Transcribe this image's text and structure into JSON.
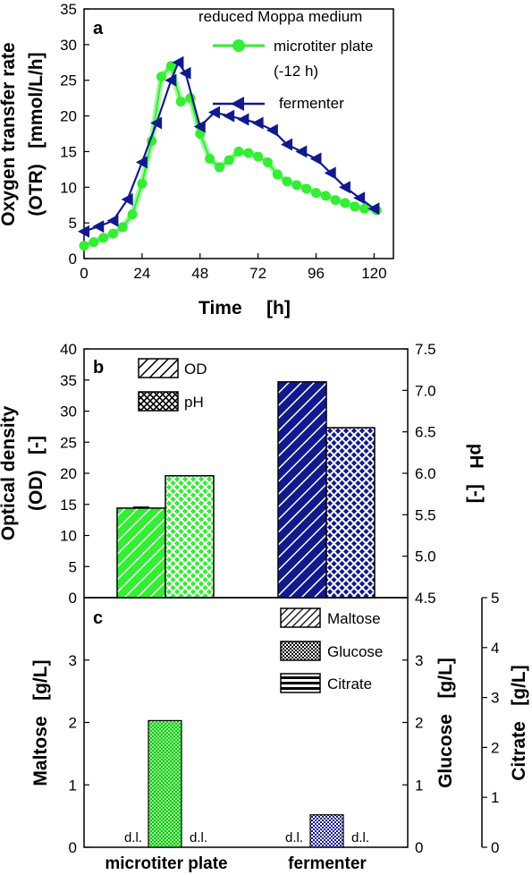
{
  "colors": {
    "green": "#33ee33",
    "green_light": "#88ff88",
    "navy": "#111a8c",
    "black": "#000000"
  },
  "chart_data": [
    {
      "panel": "a",
      "type": "line",
      "annotation": "reduced Moppa medium",
      "xlabel": [
        "Time",
        "[h]"
      ],
      "ylabel": [
        "Oxygen transfer rate",
        "(OTR)   [mmol/L/h]"
      ],
      "xlim": [
        0,
        128
      ],
      "ylim": [
        0,
        35
      ],
      "xticks": [
        0,
        24,
        48,
        72,
        96,
        120
      ],
      "yticks": [
        0,
        5,
        10,
        15,
        20,
        25,
        30,
        35
      ],
      "series": [
        {
          "name": "microtiter plate",
          "note": "(-12 h)",
          "color": "#33ee33",
          "marker": "circle",
          "x": [
            0,
            4,
            8,
            12,
            16,
            20,
            24,
            28,
            32,
            36,
            40,
            44,
            48,
            52,
            56,
            60,
            64,
            68,
            72,
            76,
            80,
            84,
            88,
            92,
            96,
            100,
            104,
            108,
            112,
            116,
            121
          ],
          "y": [
            1.8,
            2.3,
            2.9,
            3.5,
            4.4,
            6.2,
            10.5,
            16.5,
            25.5,
            27.0,
            22.0,
            22.5,
            17.5,
            14.0,
            12.8,
            13.8,
            15.0,
            14.8,
            14.3,
            13.5,
            11.8,
            10.8,
            10.3,
            9.8,
            9.2,
            8.8,
            8.2,
            7.8,
            7.3,
            7.0,
            6.8
          ]
        },
        {
          "name": "fermenter",
          "color": "#111a8c",
          "marker": "triangle-left",
          "x": [
            0,
            6,
            12,
            18,
            24,
            30,
            36,
            39,
            42,
            48,
            54,
            60,
            66,
            72,
            78,
            84,
            90,
            96,
            102,
            108,
            114,
            120
          ],
          "y": [
            3.8,
            4.5,
            5.3,
            8.3,
            13.5,
            19.0,
            25.0,
            27.5,
            26.0,
            18.5,
            20.5,
            20.0,
            19.5,
            19.0,
            18.0,
            16.0,
            15.0,
            14.0,
            12.0,
            10.0,
            8.5,
            7.0
          ]
        }
      ]
    },
    {
      "panel": "b",
      "type": "bar",
      "categories": [
        "microtiter plate",
        "fermenter"
      ],
      "ylabel": [
        "Optical density",
        "(OD)   [-]"
      ],
      "y2label": "pH   [-]",
      "ylim": [
        0,
        40
      ],
      "y2lim": [
        4.5,
        7.5
      ],
      "yticks": [
        0,
        5,
        10,
        15,
        20,
        25,
        30,
        35,
        40
      ],
      "y2ticks": [
        "4.5",
        "5.0",
        "5.5",
        "6.0",
        "6.5",
        "7.0",
        "7.5"
      ],
      "series": [
        {
          "name": "OD",
          "axis": "left",
          "pattern": "diagonal",
          "values": [
            14.4,
            34.7
          ]
        },
        {
          "name": "pH",
          "axis": "right",
          "pattern": "crosshatch",
          "values": [
            5.97,
            6.55
          ]
        }
      ]
    },
    {
      "panel": "c",
      "type": "bar",
      "categories": [
        "microtiter plate",
        "fermenter"
      ],
      "ylabel": "Maltose   [g/L]",
      "y2label": "Glucose   [g/L]",
      "y3label": "Citrate   [g/L]",
      "ylim": [
        0,
        4
      ],
      "y2lim": [
        0,
        4
      ],
      "y3lim": [
        0,
        5
      ],
      "yticks": [
        0,
        1,
        2,
        3
      ],
      "y2ticks": [
        0,
        1,
        2,
        3
      ],
      "y3ticks": [
        0,
        1,
        2,
        3,
        4,
        5
      ],
      "below_detection_label": "d.l.",
      "series": [
        {
          "name": "Maltose",
          "pattern": "diagonal-dense",
          "values": [
            "d.l.",
            "d.l."
          ]
        },
        {
          "name": "Glucose",
          "pattern": "checker",
          "values": [
            2.03,
            0.52
          ]
        },
        {
          "name": "Citrate",
          "pattern": "horizontal",
          "values": [
            "d.l.",
            "d.l."
          ]
        }
      ]
    }
  ]
}
